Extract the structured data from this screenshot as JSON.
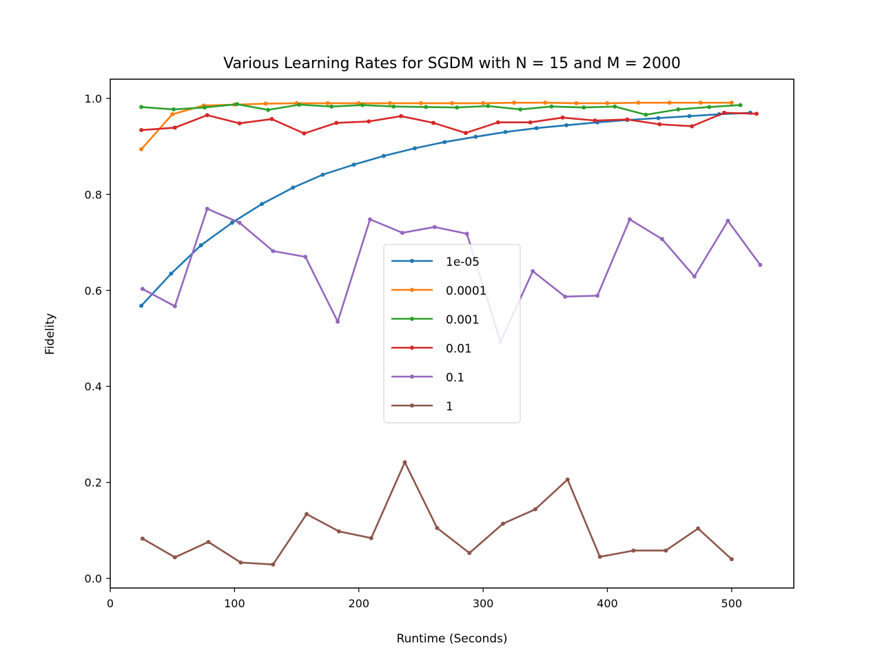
{
  "chart_data": {
    "type": "line",
    "title": "Various Learning Rates for SGDM with N = 15 and M = 2000",
    "xlabel": "Runtime (Seconds)",
    "ylabel": "Fidelity",
    "xlim": [
      0,
      550
    ],
    "ylim": [
      -0.02,
      1.04
    ],
    "xticks": [
      "0",
      "100",
      "200",
      "300",
      "400",
      "500"
    ],
    "yticks": [
      "0.0",
      "0.2",
      "0.4",
      "0.6",
      "0.8",
      "1.0"
    ],
    "grid": false,
    "legend_position": "center",
    "series": [
      {
        "name": "1e-05",
        "color": "#1f77b4",
        "x": [
          25,
          49,
          73,
          98,
          122,
          147,
          171,
          196,
          220,
          245,
          269,
          294,
          318,
          343,
          367,
          392,
          416,
          441,
          466,
          490,
          515
        ],
        "y": [
          0.568,
          0.635,
          0.694,
          0.741,
          0.78,
          0.814,
          0.841,
          0.862,
          0.88,
          0.896,
          0.909,
          0.92,
          0.93,
          0.938,
          0.944,
          0.95,
          0.955,
          0.959,
          0.963,
          0.967,
          0.97
        ]
      },
      {
        "name": "0.0001",
        "color": "#ff7f0e",
        "x": [
          25,
          50,
          75,
          100,
          125,
          150,
          175,
          200,
          225,
          250,
          275,
          300,
          325,
          350,
          375,
          400,
          425,
          450,
          475,
          500
        ],
        "y": [
          0.894,
          0.967,
          0.985,
          0.987,
          0.989,
          0.99,
          0.99,
          0.99,
          0.99,
          0.99,
          0.99,
          0.99,
          0.991,
          0.991,
          0.99,
          0.99,
          0.991,
          0.991,
          0.991,
          0.991
        ]
      },
      {
        "name": "0.001",
        "color": "#2ca02c",
        "x": [
          25,
          51,
          76,
          102,
          127,
          152,
          178,
          203,
          228,
          254,
          279,
          304,
          330,
          355,
          381,
          406,
          431,
          457,
          482,
          507
        ],
        "y": [
          0.982,
          0.977,
          0.981,
          0.988,
          0.976,
          0.987,
          0.983,
          0.986,
          0.983,
          0.982,
          0.981,
          0.984,
          0.977,
          0.983,
          0.981,
          0.983,
          0.966,
          0.977,
          0.982,
          0.986
        ]
      },
      {
        "name": "0.01",
        "color": "#d62728",
        "x": [
          25,
          52,
          78,
          104,
          130,
          156,
          182,
          208,
          234,
          260,
          286,
          312,
          338,
          364,
          390,
          416,
          442,
          468,
          494,
          520
        ],
        "y": [
          0.934,
          0.939,
          0.965,
          0.948,
          0.957,
          0.927,
          0.949,
          0.952,
          0.963,
          0.949,
          0.928,
          0.95,
          0.95,
          0.96,
          0.954,
          0.956,
          0.946,
          0.942,
          0.97,
          0.968
        ]
      },
      {
        "name": "0.1",
        "color": "#9467bd",
        "x": [
          26,
          52,
          78,
          104,
          131,
          157,
          183,
          209,
          235,
          261,
          287,
          314,
          340,
          366,
          392,
          418,
          444,
          470,
          497,
          523
        ],
        "y": [
          0.603,
          0.567,
          0.77,
          0.741,
          0.682,
          0.67,
          0.535,
          0.748,
          0.72,
          0.732,
          0.718,
          0.493,
          0.64,
          0.587,
          0.589,
          0.748,
          0.707,
          0.629,
          0.745,
          0.653
        ]
      },
      {
        "name": "1",
        "color": "#8c564b",
        "x": [
          26,
          52,
          79,
          105,
          131,
          158,
          184,
          210,
          237,
          263,
          289,
          316,
          342,
          368,
          394,
          421,
          447,
          473,
          500
        ],
        "y": [
          0.083,
          0.044,
          0.076,
          0.033,
          0.029,
          0.134,
          0.098,
          0.084,
          0.242,
          0.105,
          0.053,
          0.114,
          0.144,
          0.206,
          0.045,
          0.058,
          0.058,
          0.104,
          0.04
        ]
      }
    ]
  }
}
